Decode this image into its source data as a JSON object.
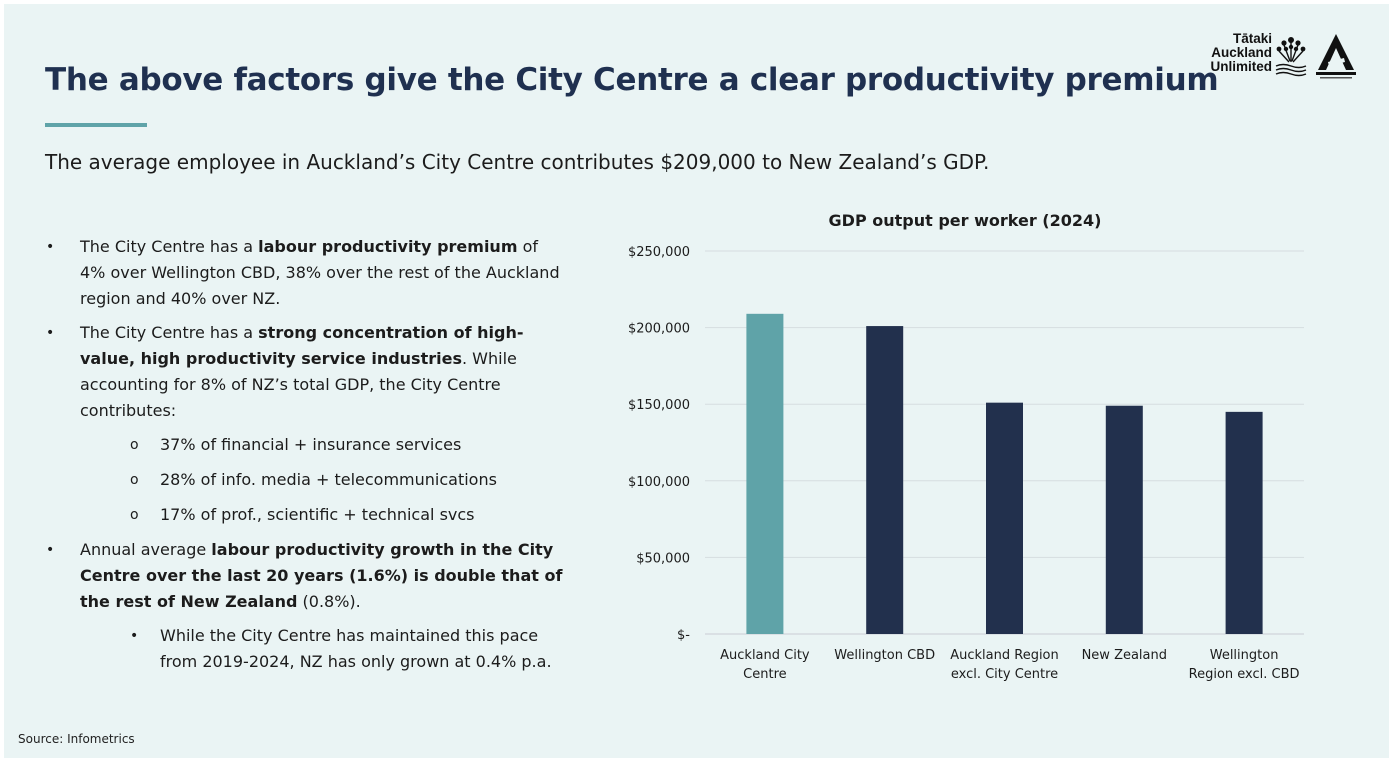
{
  "header": {
    "title": "The above factors give the City Centre a clear productivity premium",
    "subtitle": "The average employee in Auckland’s City Centre contributes $209,000 to New Zealand’s GDP.",
    "logo_lines": [
      "Tātaki",
      "Auckland",
      "Unlimited"
    ],
    "accent_color": "#5fa3a8"
  },
  "bullets": {
    "b1_pre": "The City Centre has a ",
    "b1_bold": "labour productivity premium",
    "b1_post": " of 4% over Wellington CBD, 38% over the rest of the Auckland region and 40% over NZ.",
    "b2_pre": "The City Centre has a ",
    "b2_bold": "strong concentration of high-value, high productivity service industries",
    "b2_post": ". While accounting for 8% of NZ’s total GDP, the City Centre contributes:",
    "sub_items": [
      "37% of financial + insurance services",
      "28% of info. media + telecommunications",
      "17% of prof., scientific + technical svcs"
    ],
    "b3_pre": "Annual average ",
    "b3_bold": "labour productivity growth in the City Centre over the last 20 years (1.6%) is double that of the rest of New Zealand",
    "b3_post": " (0.8%).",
    "b3_sub": "While the City Centre has maintained this pace from 2019-2024, NZ has only grown at 0.4% p.a."
  },
  "source": "Source: Infometrics",
  "chart_data": {
    "type": "bar",
    "title": "GDP output per worker (2024)",
    "categories": [
      [
        "Auckland City",
        "Centre"
      ],
      [
        "Wellington CBD"
      ],
      [
        "Auckland Region",
        "excl. City Centre"
      ],
      [
        "New Zealand"
      ],
      [
        "Wellington",
        "Region excl. CBD"
      ]
    ],
    "values": [
      209000,
      201000,
      151000,
      149000,
      145000
    ],
    "colors": [
      "#5fa3a8",
      "#22304d",
      "#22304d",
      "#22304d",
      "#22304d"
    ],
    "ylim": [
      0,
      250000
    ],
    "yticks": [
      0,
      50000,
      100000,
      150000,
      200000,
      250000
    ],
    "ytick_labels": [
      "$-",
      "$50,000",
      "$100,000",
      "$150,000",
      "$200,000",
      "$250,000"
    ],
    "grid": true,
    "legend": "none"
  }
}
